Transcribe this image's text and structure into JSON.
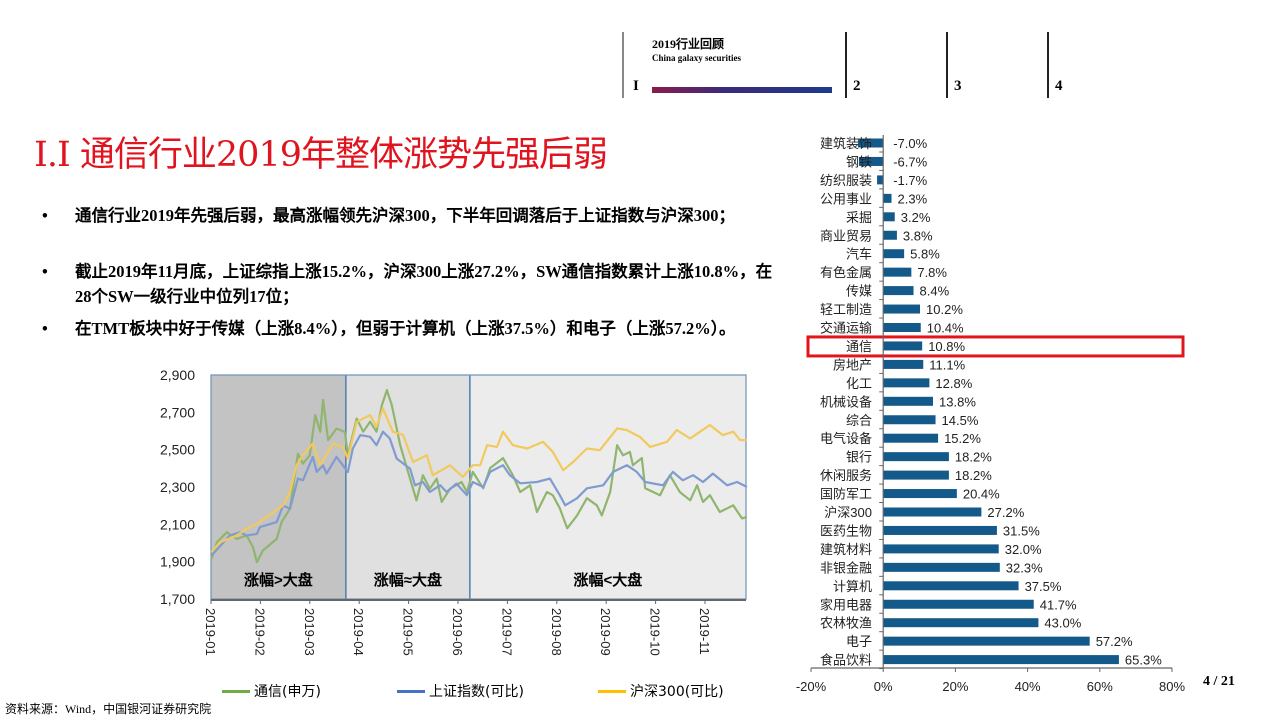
{
  "header": {
    "section_title": "2019行业回顾",
    "section_subtitle": "China galaxy securities",
    "sections": [
      "I",
      "2",
      "3",
      "4"
    ]
  },
  "title": "I.I 通信行业2019年整体涨势先强后弱",
  "bullets": [
    "通信行业2019年先强后弱，最高涨幅领先沪深300，下半年回调落后于上证指数与沪深300；",
    "截止2019年11月底，上证综指上涨15.2%，沪深300上涨27.2%，SW通信指数累计上涨10.8%，在28个SW一级行业中位列17位；",
    "在TMT板块中好于传媒（上涨8.4%），但弱于计算机（上涨37.5%）和电子（上涨57.2%）。"
  ],
  "bullet_symbol": "•",
  "page": "4 / 21",
  "source": "资料来源：Wind，中国银河证券研究院",
  "colors": {
    "title": "#e0141e",
    "bar": "#13598a",
    "highlight": "#e3141b",
    "green": "#8fb56e",
    "blue": "#7f9bd0",
    "yellow": "#f1c95c"
  },
  "chart_data": [
    {
      "type": "line",
      "title": "",
      "xlabel": "",
      "ylabel": "",
      "x_unit": "months since 2019-01-01",
      "xticks": [
        "2019-01",
        "2019-02",
        "2019-03",
        "2019-04",
        "2019-05",
        "2019-06",
        "2019-07",
        "2019-08",
        "2019-09",
        "2019-10",
        "2019-11"
      ],
      "xlim": [
        0,
        10.83
      ],
      "ylim": [
        1700,
        2900
      ],
      "yticks": [
        "1,700",
        "1,900",
        "2,100",
        "2,300",
        "2,500",
        "2,700",
        "2,900"
      ],
      "ytick_values": [
        1700,
        1900,
        2100,
        2300,
        2500,
        2700,
        2900
      ],
      "regions": [
        {
          "label": "涨幅>大盘",
          "start": 0,
          "end": 2.73,
          "color": "#c3c3c3"
        },
        {
          "label": "涨幅≈大盘",
          "start": 2.73,
          "end": 5.24,
          "color": "#e0e0e0"
        },
        {
          "label": "涨幅<大盘",
          "start": 5.24,
          "end": 10.83,
          "color": "#ececec"
        }
      ],
      "legend_position": "bottom",
      "series": [
        {
          "name": "通信(申万)",
          "color": "#8fb56e",
          "points": [
            [
              0.01,
              1915
            ],
            [
              0.12,
              2004
            ],
            [
              0.32,
              2058
            ],
            [
              0.52,
              2022
            ],
            [
              0.72,
              2040
            ],
            [
              0.85,
              1978
            ],
            [
              0.93,
              1897
            ],
            [
              1.05,
              1960
            ],
            [
              1.33,
              2022
            ],
            [
              1.43,
              2112
            ],
            [
              1.6,
              2184
            ],
            [
              1.76,
              2479
            ],
            [
              1.86,
              2425
            ],
            [
              2.0,
              2470
            ],
            [
              2.11,
              2685
            ],
            [
              2.21,
              2596
            ],
            [
              2.27,
              2766
            ],
            [
              2.37,
              2551
            ],
            [
              2.54,
              2613
            ],
            [
              2.71,
              2595
            ],
            [
              2.77,
              2470
            ],
            [
              2.95,
              2667
            ],
            [
              3.08,
              2596
            ],
            [
              3.22,
              2650
            ],
            [
              3.35,
              2596
            ],
            [
              3.46,
              2739
            ],
            [
              3.56,
              2819
            ],
            [
              3.66,
              2739
            ],
            [
              3.83,
              2524
            ],
            [
              4.09,
              2291
            ],
            [
              4.16,
              2228
            ],
            [
              4.29,
              2363
            ],
            [
              4.43,
              2291
            ],
            [
              4.57,
              2345
            ],
            [
              4.67,
              2220
            ],
            [
              4.84,
              2291
            ],
            [
              5.07,
              2327
            ],
            [
              5.18,
              2273
            ],
            [
              5.3,
              2381
            ],
            [
              5.51,
              2293
            ],
            [
              5.65,
              2401
            ],
            [
              5.91,
              2455
            ],
            [
              6.11,
              2363
            ],
            [
              6.26,
              2273
            ],
            [
              6.46,
              2309
            ],
            [
              6.6,
              2166
            ],
            [
              6.8,
              2273
            ],
            [
              6.92,
              2256
            ],
            [
              7.06,
              2186
            ],
            [
              7.21,
              2079
            ],
            [
              7.41,
              2148
            ],
            [
              7.61,
              2240
            ],
            [
              7.81,
              2202
            ],
            [
              7.91,
              2148
            ],
            [
              8.08,
              2273
            ],
            [
              8.22,
              2524
            ],
            [
              8.34,
              2470
            ],
            [
              8.48,
              2488
            ],
            [
              8.54,
              2417
            ],
            [
              8.72,
              2455
            ],
            [
              8.79,
              2293
            ],
            [
              9.09,
              2256
            ],
            [
              9.29,
              2363
            ],
            [
              9.49,
              2273
            ],
            [
              9.7,
              2229
            ],
            [
              9.84,
              2309
            ],
            [
              9.96,
              2220
            ],
            [
              10.1,
              2256
            ],
            [
              10.3,
              2166
            ],
            [
              10.45,
              2186
            ],
            [
              10.57,
              2202
            ],
            [
              10.75,
              2132
            ],
            [
              10.85,
              2140
            ]
          ]
        },
        {
          "name": "上证指数(可比)",
          "color": "#7f9bd0",
          "points": [
            [
              0.01,
              1933
            ],
            [
              0.38,
              2040
            ],
            [
              0.59,
              2058
            ],
            [
              0.72,
              2040
            ],
            [
              0.93,
              2049
            ],
            [
              0.99,
              2085
            ],
            [
              1.33,
              2112
            ],
            [
              1.46,
              2201
            ],
            [
              1.6,
              2184
            ],
            [
              1.76,
              2345
            ],
            [
              1.86,
              2336
            ],
            [
              2.06,
              2461
            ],
            [
              2.14,
              2381
            ],
            [
              2.27,
              2416
            ],
            [
              2.34,
              2372
            ],
            [
              2.54,
              2461
            ],
            [
              2.67,
              2416
            ],
            [
              2.77,
              2380
            ],
            [
              2.87,
              2506
            ],
            [
              3.02,
              2578
            ],
            [
              3.22,
              2569
            ],
            [
              3.35,
              2524
            ],
            [
              3.48,
              2596
            ],
            [
              3.62,
              2560
            ],
            [
              3.76,
              2452
            ],
            [
              4.03,
              2398
            ],
            [
              4.13,
              2309
            ],
            [
              4.29,
              2327
            ],
            [
              4.43,
              2273
            ],
            [
              4.64,
              2309
            ],
            [
              4.77,
              2273
            ],
            [
              4.97,
              2318
            ],
            [
              5.18,
              2256
            ],
            [
              5.3,
              2327
            ],
            [
              5.51,
              2300
            ],
            [
              5.65,
              2381
            ],
            [
              5.91,
              2417
            ],
            [
              6.05,
              2363
            ],
            [
              6.26,
              2320
            ],
            [
              6.6,
              2327
            ],
            [
              6.86,
              2345
            ],
            [
              7.06,
              2256
            ],
            [
              7.17,
              2202
            ],
            [
              7.41,
              2240
            ],
            [
              7.61,
              2293
            ],
            [
              7.94,
              2309
            ],
            [
              8.14,
              2381
            ],
            [
              8.42,
              2417
            ],
            [
              8.62,
              2381
            ],
            [
              8.79,
              2327
            ],
            [
              9.15,
              2309
            ],
            [
              9.35,
              2381
            ],
            [
              9.55,
              2336
            ],
            [
              9.76,
              2363
            ],
            [
              9.96,
              2327
            ],
            [
              10.16,
              2372
            ],
            [
              10.45,
              2309
            ],
            [
              10.65,
              2327
            ],
            [
              10.85,
              2300
            ]
          ]
        },
        {
          "name": "沪深300(可比)",
          "color": "#f1c95c",
          "points": [
            [
              0.01,
              1951
            ],
            [
              0.18,
              2004
            ],
            [
              0.52,
              2040
            ],
            [
              0.72,
              2076
            ],
            [
              0.99,
              2112
            ],
            [
              1.13,
              2139
            ],
            [
              1.46,
              2201
            ],
            [
              1.6,
              2273
            ],
            [
              1.73,
              2416
            ],
            [
              1.86,
              2470
            ],
            [
              2.06,
              2533
            ],
            [
              2.21,
              2416
            ],
            [
              2.47,
              2533
            ],
            [
              2.67,
              2515
            ],
            [
              2.77,
              2452
            ],
            [
              2.95,
              2649
            ],
            [
              3.22,
              2685
            ],
            [
              3.35,
              2623
            ],
            [
              3.48,
              2721
            ],
            [
              3.68,
              2596
            ],
            [
              3.89,
              2578
            ],
            [
              4.09,
              2434
            ],
            [
              4.37,
              2470
            ],
            [
              4.49,
              2363
            ],
            [
              4.84,
              2416
            ],
            [
              5.1,
              2354
            ],
            [
              5.3,
              2417
            ],
            [
              5.45,
              2417
            ],
            [
              5.59,
              2524
            ],
            [
              5.79,
              2515
            ],
            [
              5.91,
              2596
            ],
            [
              6.11,
              2524
            ],
            [
              6.4,
              2506
            ],
            [
              6.72,
              2542
            ],
            [
              6.92,
              2488
            ],
            [
              7.13,
              2390
            ],
            [
              7.33,
              2434
            ],
            [
              7.61,
              2506
            ],
            [
              7.87,
              2497
            ],
            [
              8.22,
              2614
            ],
            [
              8.42,
              2605
            ],
            [
              8.68,
              2569
            ],
            [
              8.89,
              2515
            ],
            [
              9.23,
              2542
            ],
            [
              9.43,
              2605
            ],
            [
              9.7,
              2560
            ],
            [
              9.9,
              2596
            ],
            [
              10.1,
              2632
            ],
            [
              10.36,
              2578
            ],
            [
              10.57,
              2596
            ],
            [
              10.71,
              2551
            ],
            [
              10.85,
              2551
            ]
          ]
        }
      ]
    },
    {
      "type": "bar",
      "orientation": "horizontal",
      "title": "",
      "categories": [
        "建筑装饰",
        "钢铁",
        "纺织服装",
        "公用事业",
        "采掘",
        "商业贸易",
        "汽车",
        "有色金属",
        "传媒",
        "轻工制造",
        "交通运输",
        "通信",
        "房地产",
        "化工",
        "机械设备",
        "综合",
        "电气设备",
        "银行",
        "休闲服务",
        "国防军工",
        "沪深300",
        "医药生物",
        "建筑材料",
        "非银金融",
        "计算机",
        "家用电器",
        "农林牧渔",
        "电子",
        "食品饮料"
      ],
      "values": [
        -7.0,
        -6.7,
        -1.7,
        2.3,
        3.2,
        3.8,
        5.8,
        7.8,
        8.4,
        10.2,
        10.4,
        10.8,
        11.1,
        12.8,
        13.8,
        14.5,
        15.2,
        18.2,
        18.2,
        20.4,
        27.2,
        31.5,
        32.0,
        32.3,
        37.5,
        41.7,
        43.0,
        57.2,
        65.3
      ],
      "value_labels": [
        "-7.0%",
        "-6.7%",
        "-1.7%",
        "2.3%",
        "3.2%",
        "3.8%",
        "5.8%",
        "7.8%",
        "8.4%",
        "10.2%",
        "10.4%",
        "10.8%",
        "11.1%",
        "12.8%",
        "13.8%",
        "14.5%",
        "15.2%",
        "18.2%",
        "18.2%",
        "20.4%",
        "27.2%",
        "31.5%",
        "32.0%",
        "32.3%",
        "37.5%",
        "41.7%",
        "43.0%",
        "57.2%",
        "65.3%"
      ],
      "highlight": "通信",
      "xlim": [
        -20,
        80
      ],
      "xticks": [
        "-20%",
        "0%",
        "20%",
        "40%",
        "60%",
        "80%"
      ],
      "xtick_values": [
        -20,
        0,
        20,
        40,
        60,
        80
      ],
      "xlabel": "",
      "ylabel": ""
    }
  ]
}
